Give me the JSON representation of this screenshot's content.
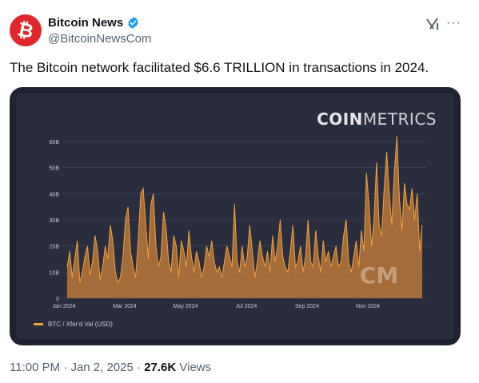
{
  "post": {
    "author_name": "Bitcoin News",
    "handle": "@BitcoinNewsCom",
    "avatar_glyph": "₿",
    "text": "The Bitcoin network facilitated $6.6 TRILLION in transactions in 2024.",
    "time": "11:00 PM",
    "sep1": "·",
    "date": "Jan 2, 2025",
    "sep2": "·",
    "views": "27.6K",
    "views_label": "Views",
    "more_glyph": "···"
  },
  "media": {
    "brand_bold": "COIN",
    "brand_rest": "METRICS",
    "legend": "BTC / Xfer'd Val (USD)",
    "watermark": "CM"
  },
  "colors": {
    "accent": "#f0a23a",
    "fill": "#b8783a",
    "background": "#2a2d3e",
    "verified": "#1d9bf0",
    "avatar": "#e0272c"
  },
  "icons": [
    "verified-badge-icon",
    "grok-icon",
    "more-icon",
    "bitcoin-logo-icon"
  ],
  "chart_data": {
    "type": "area",
    "title": "",
    "xlabel": "",
    "ylabel": "",
    "ylim": [
      0,
      60
    ],
    "y_ticks": [
      "0",
      "10B",
      "20B",
      "30B",
      "40B",
      "50B",
      "60B"
    ],
    "x_ticks": [
      "Jan 2024",
      "Mar 2024",
      "May 2024",
      "Jul 2024",
      "Sep 2024",
      "Nov 2024"
    ],
    "x_tick_months": [
      0,
      2,
      4,
      6,
      8,
      10
    ],
    "grid": true,
    "legend_position": "bottom-left",
    "series": [
      {
        "name": "BTC / Xfer'd Val (USD)",
        "values_billions": [
          12,
          18,
          8,
          15,
          22,
          6,
          10,
          16,
          20,
          9,
          14,
          24,
          18,
          7,
          12,
          20,
          15,
          28,
          22,
          10,
          6,
          8,
          16,
          30,
          35,
          18,
          12,
          8,
          22,
          40,
          42,
          28,
          15,
          36,
          40,
          20,
          12,
          16,
          33,
          27,
          14,
          10,
          24,
          20,
          8,
          22,
          18,
          12,
          26,
          16,
          10,
          18,
          14,
          8,
          12,
          20,
          16,
          22,
          14,
          10,
          12,
          8,
          14,
          20,
          16,
          12,
          36,
          14,
          10,
          20,
          12,
          16,
          28,
          18,
          8,
          14,
          22,
          16,
          12,
          18,
          10,
          24,
          14,
          20,
          30,
          16,
          12,
          10,
          18,
          28,
          12,
          14,
          20,
          10,
          16,
          30,
          14,
          12,
          26,
          16,
          10,
          22,
          14,
          18,
          12,
          16,
          20,
          12,
          14,
          24,
          30,
          14,
          10,
          16,
          22,
          12,
          26,
          18,
          48,
          36,
          20,
          30,
          52,
          28,
          24,
          42,
          56,
          40,
          28,
          48,
          62,
          38,
          26,
          44,
          36,
          34,
          42,
          30,
          40,
          18,
          28
        ],
        "color": "#f0a23a"
      }
    ]
  }
}
